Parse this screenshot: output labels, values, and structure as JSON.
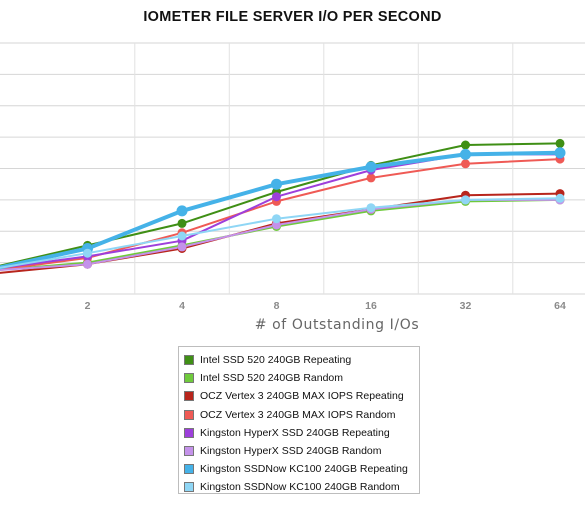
{
  "chart_data": {
    "type": "line",
    "title": "IOMETER FILE SERVER I/O PER SECOND",
    "xlabel": "# of Outstanding I/Os",
    "ylabel": "",
    "x": [
      1,
      2,
      4,
      8,
      16,
      32,
      64
    ],
    "x_tick_labels": [
      "2",
      "4",
      "8",
      "16",
      "32",
      "64"
    ],
    "ylim": [
      0,
      8
    ],
    "y_ticks_shown": false,
    "grid": "horizontal",
    "legend_position": "bottom",
    "series": [
      {
        "name": "Intel SSD 520 240GB Repeating",
        "color": "#3f8f15",
        "values": [
          0.85,
          1.55,
          2.25,
          3.25,
          4.1,
          4.75,
          4.8
        ]
      },
      {
        "name": "Intel SSD 520 240GB Random",
        "color": "#6fca3c",
        "values": [
          0.75,
          1.0,
          1.55,
          2.15,
          2.65,
          2.95,
          3.0
        ]
      },
      {
        "name": "OCZ Vertex 3 240GB MAX IOPS Repeating",
        "color": "#b8251c",
        "values": [
          0.65,
          0.95,
          1.45,
          2.25,
          2.7,
          3.15,
          3.2
        ]
      },
      {
        "name": "OCZ Vertex 3 240GB MAX IOPS Random",
        "color": "#ef5a55",
        "values": [
          0.75,
          1.15,
          1.95,
          2.95,
          3.7,
          4.15,
          4.3
        ]
      },
      {
        "name": "Kingston HyperX SSD 240GB Repeating",
        "color": "#9d3fdb",
        "values": [
          0.8,
          1.2,
          1.7,
          3.1,
          3.95,
          4.45,
          4.45
        ]
      },
      {
        "name": "Kingston HyperX SSD 240GB Random",
        "color": "#c492ea",
        "values": [
          0.75,
          0.95,
          1.5,
          2.2,
          2.7,
          3.0,
          3.0
        ]
      },
      {
        "name": "Kingston SSDNow KC100 240GB Repeating",
        "color": "#45b2e8",
        "values": [
          0.8,
          1.45,
          2.65,
          3.5,
          4.05,
          4.45,
          4.5
        ]
      },
      {
        "name": "Kingston SSDNow KC100 240GB Random",
        "color": "#8fd6f5",
        "values": [
          0.8,
          1.3,
          1.85,
          2.4,
          2.75,
          3.0,
          3.05
        ]
      }
    ]
  }
}
